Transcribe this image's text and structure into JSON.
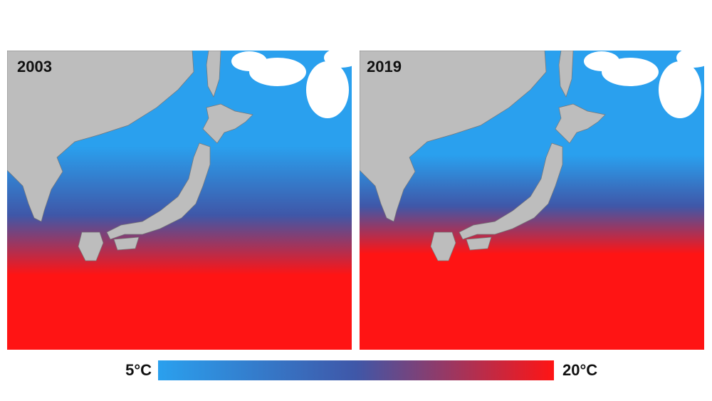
{
  "panels": [
    {
      "label": "2003"
    },
    {
      "label": "2019"
    }
  ],
  "legend": {
    "min_label": "5°C",
    "max_label": "20°C",
    "cold_color": "#2aa0ee",
    "mid_color": "#3f57a8",
    "warm_color": "#ff1414"
  }
}
